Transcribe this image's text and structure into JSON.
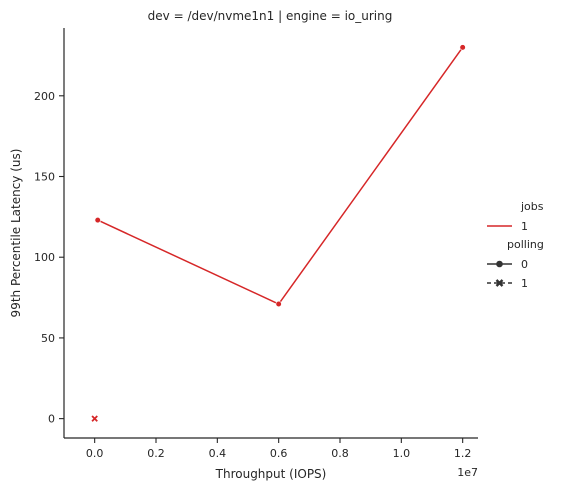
{
  "chart_data": {
    "type": "line",
    "title": "dev = /dev/nvme1n1 | engine = io_uring",
    "xlabel": "Throughput (IOPS)",
    "ylabel": "99th Percentile Latency (us)",
    "x_offset_label": "1e7",
    "xlim": [
      -0.1,
      1.25
    ],
    "ylim": [
      -12,
      242
    ],
    "x_ticks": [
      0.0,
      0.2,
      0.4,
      0.6,
      0.8,
      1.0,
      1.2
    ],
    "x_tick_labels": [
      "0.0",
      "0.2",
      "0.4",
      "0.6",
      "0.8",
      "1.0",
      "1.2"
    ],
    "y_ticks": [
      0,
      50,
      100,
      150,
      200
    ],
    "y_tick_labels": [
      "0",
      "50",
      "100",
      "150",
      "200"
    ],
    "grid": false,
    "legend": {
      "placement": "right",
      "hue_title": "jobs",
      "hue_entries": [
        {
          "label": "1",
          "color": "#d62728"
        }
      ],
      "style_title": "polling",
      "style_entries": [
        {
          "label": "0",
          "marker": "circle",
          "dash": "solid"
        },
        {
          "label": "1",
          "marker": "x",
          "dash": "dashed"
        }
      ]
    },
    "series": [
      {
        "jobs": "1",
        "polling": "0",
        "color": "#d62728",
        "marker": "circle",
        "x": [
          0.01,
          0.6,
          1.2
        ],
        "y": [
          123,
          71,
          230
        ]
      },
      {
        "jobs": "1",
        "polling": "1",
        "color": "#d62728",
        "marker": "x",
        "x": [
          0.0
        ],
        "y": [
          0
        ]
      }
    ]
  }
}
